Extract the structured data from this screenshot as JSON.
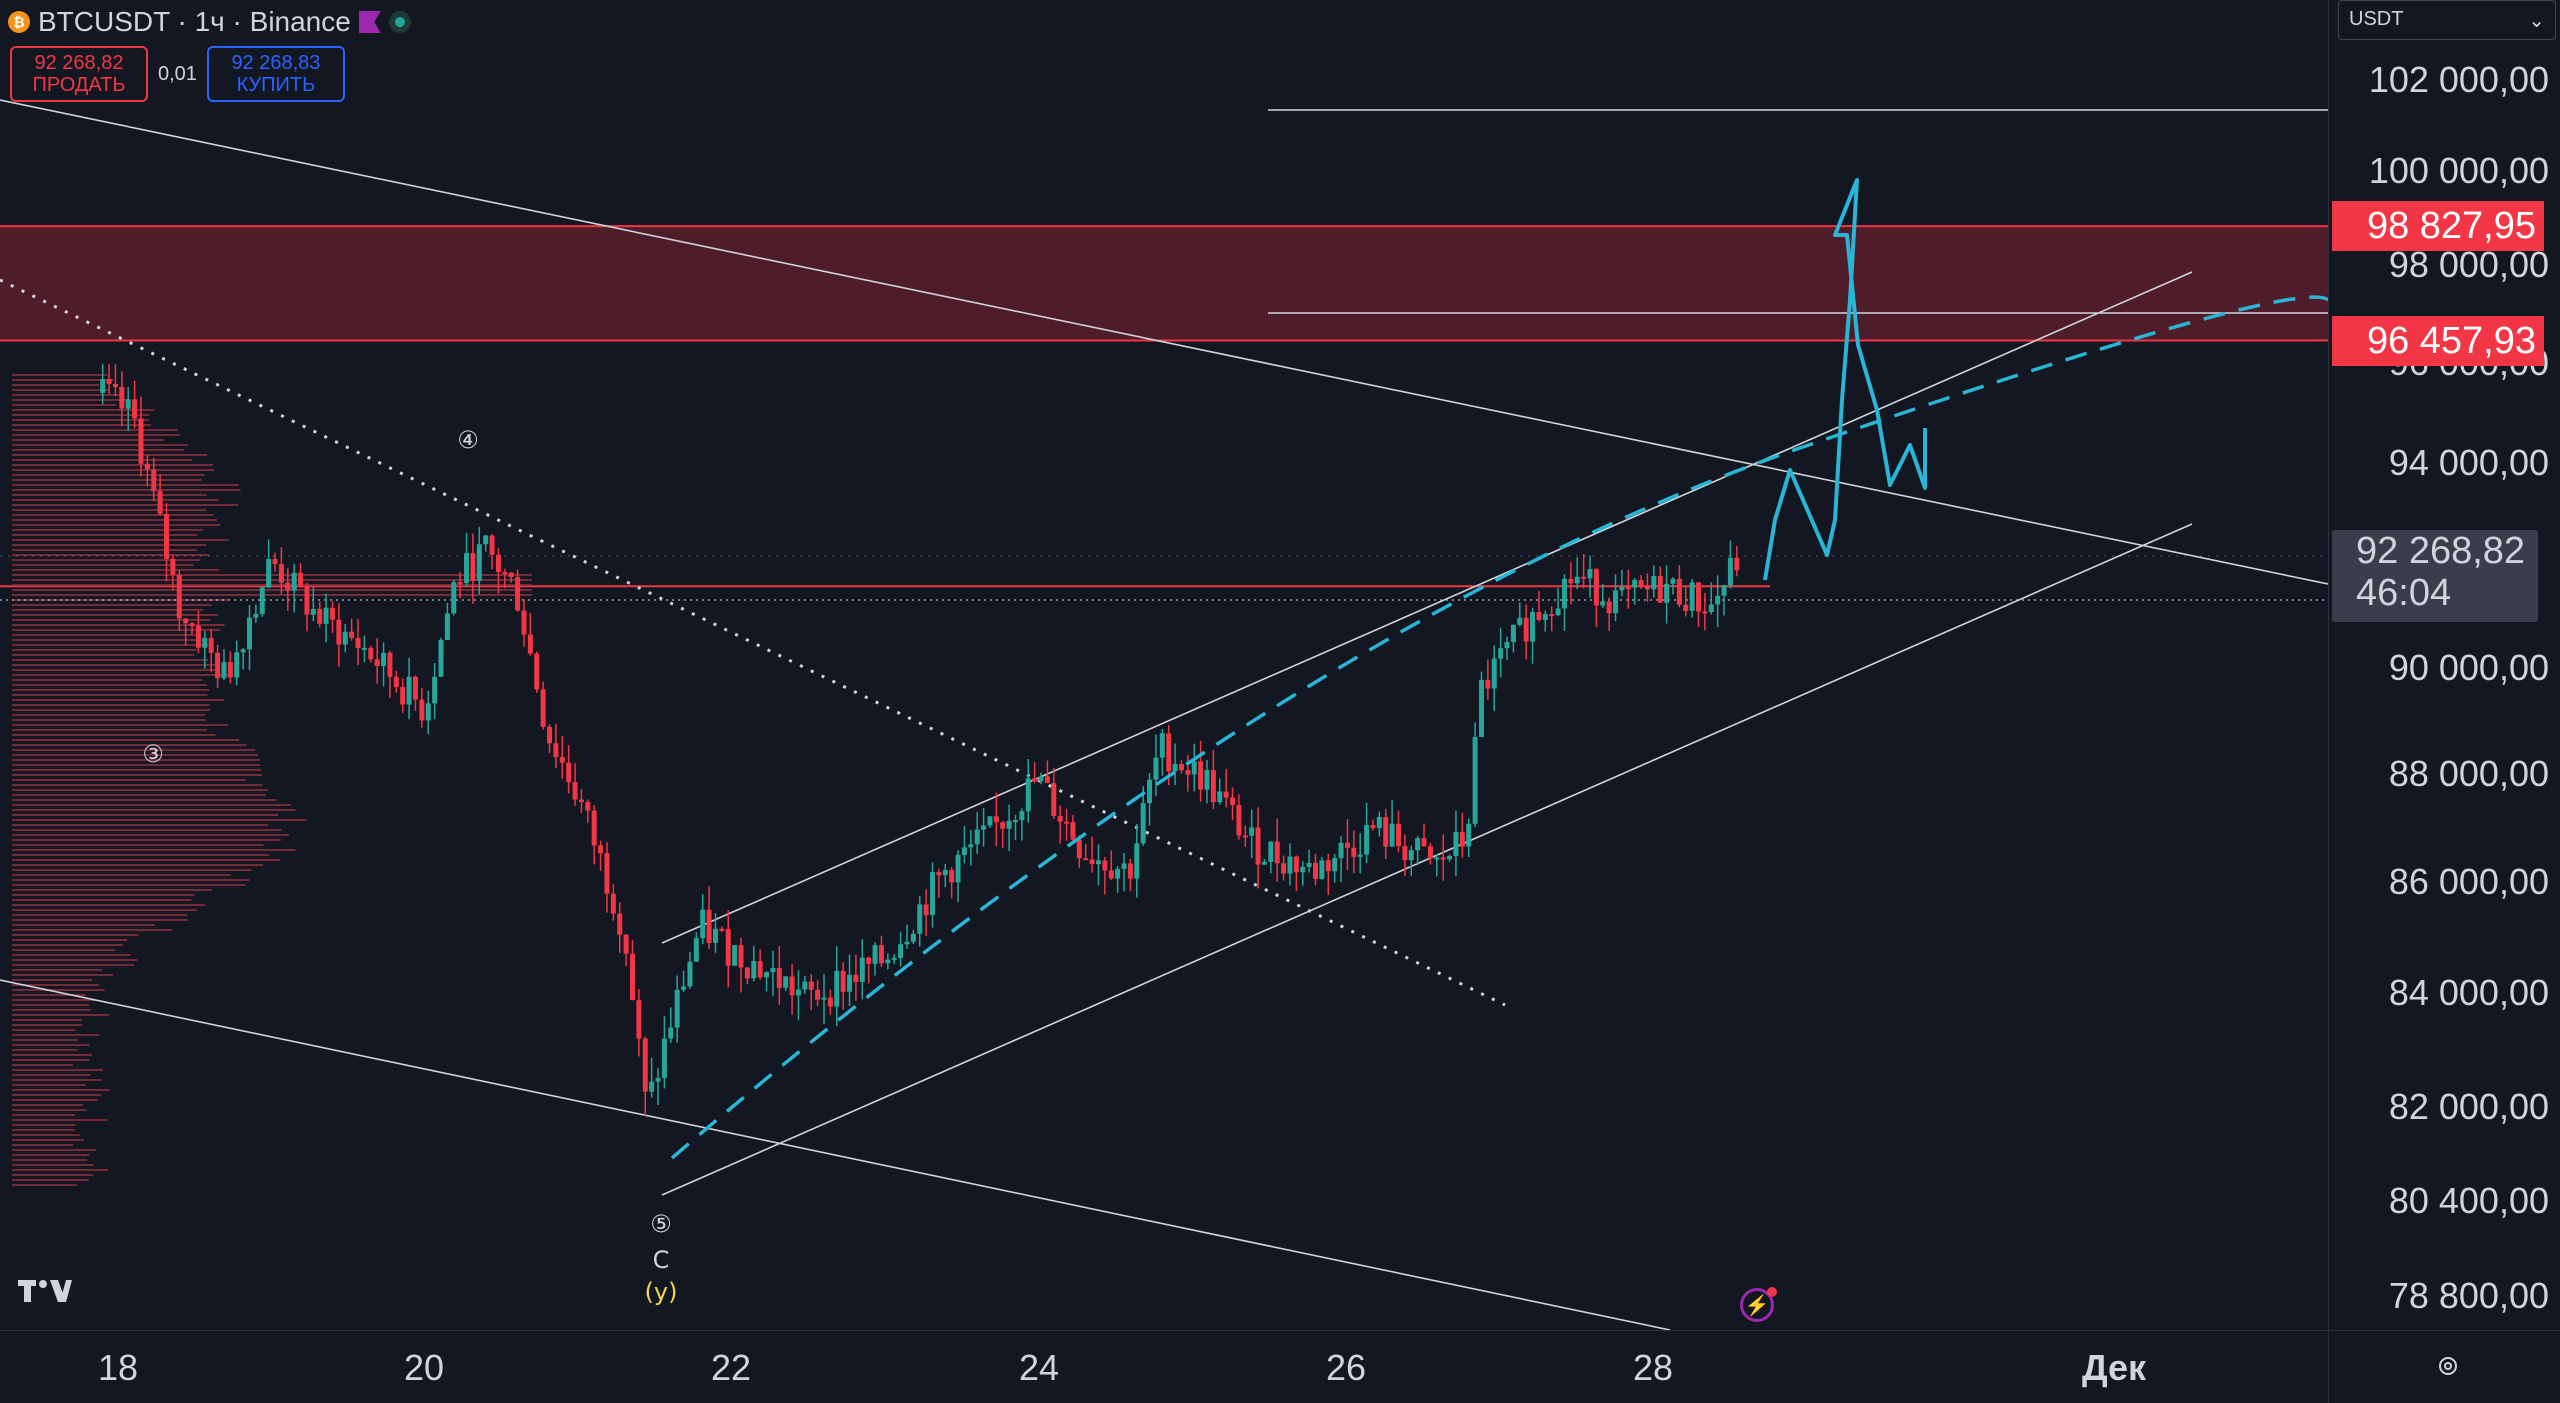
{
  "header": {
    "symbol_title": "BTCUSDT · 1ч · Binance",
    "sell_price": "92 268,82",
    "sell_label": "ПРОДАТЬ",
    "spread": "0,01",
    "buy_price": "92 268,83",
    "buy_label": "КУПИТЬ",
    "currency": "USDT"
  },
  "price_axis": {
    "labels": [
      "102 000,00",
      "100 000,00",
      "98 000,00",
      "96 000,00",
      "94 000,00",
      "90 000,00",
      "88 000,00",
      "86 000,00",
      "84 000,00",
      "82 000,00",
      "80 400,00",
      "78 800,00"
    ],
    "zone_top_badge": "98 827,95",
    "zone_bottom_badge": "96 457,93",
    "current_price": "92 268,82",
    "countdown": "46:04"
  },
  "time_axis": {
    "labels": [
      "18",
      "20",
      "22",
      "24",
      "26",
      "28",
      "Дек"
    ]
  },
  "annotations": {
    "wave_4": "④",
    "wave_3": "③",
    "wave_5": "⑤",
    "wave_c": "C",
    "wave_y": "(y)"
  },
  "colors": {
    "background": "#131722",
    "up": "#26a69a",
    "down": "#f23645",
    "projection": "#29b6d6",
    "zone": "#5a1f2b",
    "volume_profile": "#8e2f3d"
  },
  "icons": [
    "bitcoin-icon",
    "flag-icon",
    "status-dot-icon",
    "tradingview-logo-icon",
    "flash-icon",
    "settings-icon",
    "chevron-down-icon"
  ],
  "chart_data": {
    "type": "candlestick",
    "symbol": "BTCUSDT",
    "interval": "1ч",
    "exchange": "Binance",
    "x": [
      "18",
      "20",
      "22",
      "24",
      "26",
      "28"
    ],
    "ylim": [
      78800,
      102000
    ],
    "key_levels": [
      98827.95,
      96457.93,
      92268.82
    ],
    "price_path_approx": [
      [
        17.9,
        95400
      ],
      [
        18.1,
        94900
      ],
      [
        18.4,
        91200
      ],
      [
        18.7,
        89800
      ],
      [
        19.0,
        92100
      ],
      [
        19.3,
        91000
      ],
      [
        19.6,
        90400
      ],
      [
        20.0,
        89200
      ],
      [
        20.2,
        91700
      ],
      [
        20.4,
        92300
      ],
      [
        20.6,
        91500
      ],
      [
        20.8,
        88800
      ],
      [
        21.0,
        87600
      ],
      [
        21.3,
        85200
      ],
      [
        21.45,
        81900
      ],
      [
        21.6,
        83400
      ],
      [
        21.8,
        85200
      ],
      [
        22.0,
        84800
      ],
      [
        22.5,
        83900
      ],
      [
        23.0,
        84600
      ],
      [
        23.4,
        86200
      ],
      [
        23.7,
        86900
      ],
      [
        24.0,
        87900
      ],
      [
        24.3,
        86600
      ],
      [
        24.6,
        86200
      ],
      [
        24.8,
        88500
      ],
      [
        25.1,
        87900
      ],
      [
        25.4,
        86700
      ],
      [
        25.8,
        86200
      ],
      [
        26.2,
        87000
      ],
      [
        26.6,
        86300
      ],
      [
        26.8,
        86800
      ],
      [
        26.9,
        89600
      ],
      [
        27.2,
        90900
      ],
      [
        27.5,
        91800
      ],
      [
        27.8,
        91300
      ],
      [
        28.1,
        91600
      ],
      [
        28.4,
        91200
      ],
      [
        28.6,
        92268.82
      ]
    ]
  }
}
